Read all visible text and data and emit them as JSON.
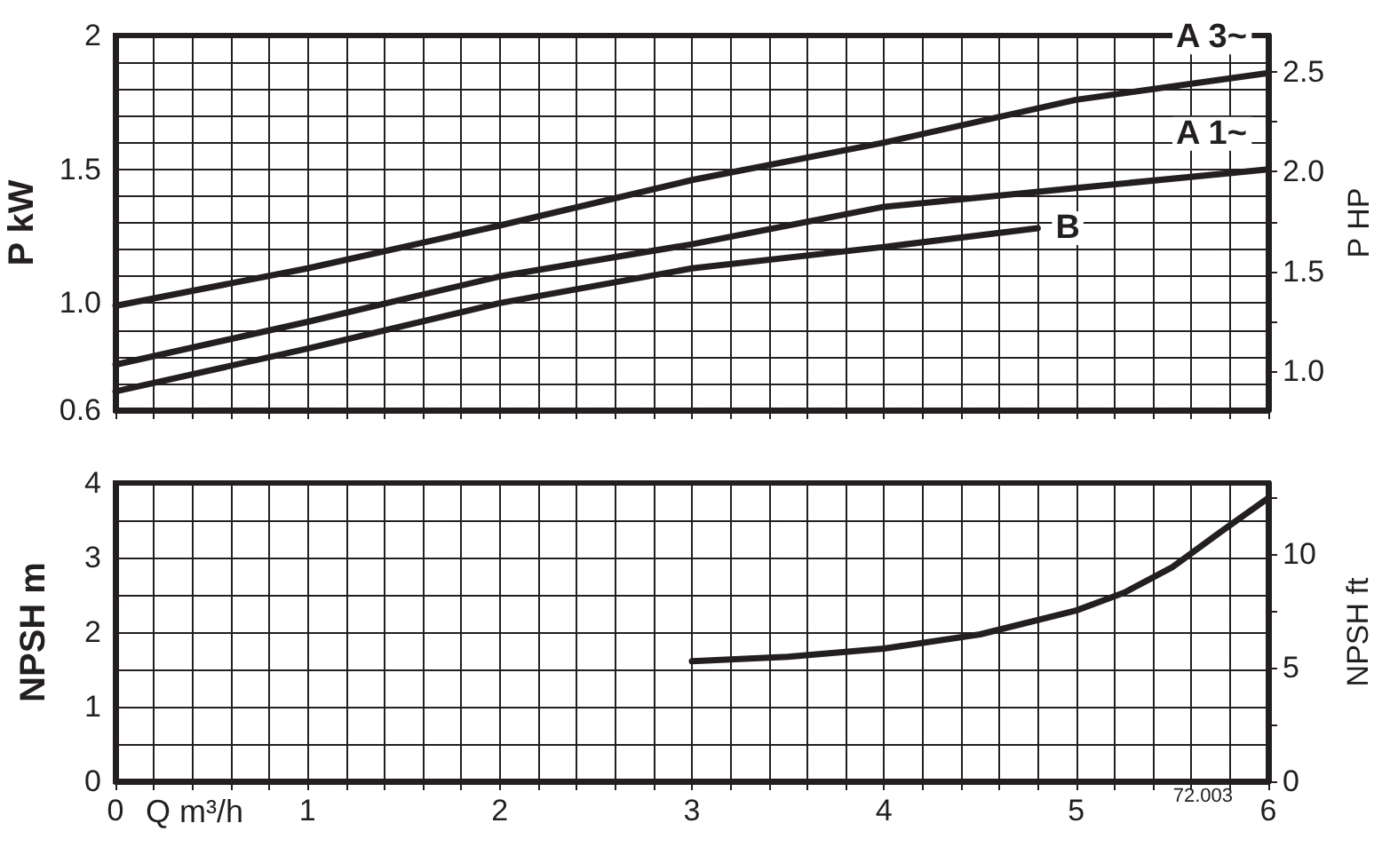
{
  "chart_data": [
    {
      "type": "line",
      "ylabel": "P kW",
      "y2label": "P HP",
      "x": [
        0,
        1,
        2,
        3,
        4,
        5,
        6
      ],
      "series": [
        {
          "name": "A 3~",
          "color": "#231f20",
          "values": [
            0.99,
            1.13,
            1.29,
            1.46,
            1.6,
            1.76,
            1.86
          ]
        },
        {
          "name": "A 1~",
          "color": "#231f20",
          "values": [
            0.77,
            0.93,
            1.1,
            1.22,
            1.36,
            1.43,
            1.5
          ]
        },
        {
          "name": "B",
          "color": "#231f20",
          "x": [
            0,
            1,
            2,
            3,
            4,
            4.8
          ],
          "values": [
            0.67,
            0.83,
            1.0,
            1.13,
            1.21,
            1.28
          ]
        }
      ],
      "xlim": [
        0,
        6
      ],
      "xticks": [
        0,
        {
          "value": 0.2,
          "label": null
        },
        {
          "value": 0.4,
          "label": null
        },
        {
          "value": 0.6,
          "label": null
        },
        {
          "value": 0.8,
          "label": null
        },
        1,
        {
          "value": 1.2,
          "label": null
        },
        {
          "value": 1.4,
          "label": null
        },
        {
          "value": 1.6,
          "label": null
        },
        {
          "value": 1.8,
          "label": null
        },
        2,
        {
          "value": 2.2,
          "label": null
        },
        {
          "value": 2.4,
          "label": null
        },
        {
          "value": 2.6,
          "label": null
        },
        {
          "value": 2.8,
          "label": null
        },
        3,
        {
          "value": 3.2,
          "label": null
        },
        {
          "value": 3.4,
          "label": null
        },
        {
          "value": 3.6,
          "label": null
        },
        {
          "value": 3.8,
          "label": null
        },
        4,
        {
          "value": 4.2,
          "label": null
        },
        {
          "value": 4.4,
          "label": null
        },
        {
          "value": 4.6,
          "label": null
        },
        {
          "value": 4.8,
          "label": null
        },
        5,
        {
          "value": 5.2,
          "label": null
        },
        {
          "value": 5.4,
          "label": null
        },
        {
          "value": 5.6,
          "label": null
        },
        {
          "value": 5.8,
          "label": null
        },
        6
      ],
      "ylim": [
        0.6,
        2
      ],
      "yticks": [
        0.6,
        {
          "value": 0.7,
          "label": null
        },
        {
          "value": 0.8,
          "label": null
        },
        {
          "value": 0.9,
          "label": null
        },
        {
          "value": 1,
          "label": "1.0"
        },
        {
          "value": 1.1,
          "label": null
        },
        {
          "value": 1.2,
          "label": null
        },
        {
          "value": 1.3,
          "label": null
        },
        {
          "value": 1.4,
          "label": null
        },
        1.5,
        {
          "value": 1.6,
          "label": null
        },
        {
          "value": 1.7,
          "label": null
        },
        {
          "value": 1.8,
          "label": null
        },
        {
          "value": 1.9,
          "label": null
        },
        2
      ],
      "y2lim": [
        0.805,
        2.682
      ],
      "y2ticks": [
        {
          "value": 1,
          "label": "1.0"
        },
        {
          "value": 1.25,
          "label": null
        },
        1.5,
        {
          "value": 1.75,
          "label": null
        },
        {
          "value": 2,
          "label": "2.0"
        },
        {
          "value": 2.25,
          "label": null
        },
        2.5
      ],
      "tick_labels": "y",
      "grid": true,
      "legend": false,
      "marker": "none",
      "line_style": "solid"
    },
    {
      "type": "line",
      "ylabel": "NPSH m",
      "y2label": "NPSH ft",
      "xlabel": "Q m³/h",
      "annotations": [
        "72.003"
      ],
      "x": [
        3,
        3.5,
        4,
        4.5,
        5,
        5.25,
        5.5,
        5.75,
        6
      ],
      "series": [
        {
          "color": "#231f20",
          "values": [
            1.61,
            1.67,
            1.78,
            1.97,
            2.29,
            2.53,
            2.87,
            3.34,
            3.8
          ]
        }
      ],
      "xlim": [
        0,
        6
      ],
      "xticks": [
        0,
        {
          "value": 0.2,
          "label": null
        },
        {
          "value": 0.4,
          "label": null
        },
        {
          "value": 0.6,
          "label": null
        },
        {
          "value": 0.8,
          "label": null
        },
        1,
        {
          "value": 1.2,
          "label": null
        },
        {
          "value": 1.4,
          "label": null
        },
        {
          "value": 1.6,
          "label": null
        },
        {
          "value": 1.8,
          "label": null
        },
        2,
        {
          "value": 2.2,
          "label": null
        },
        {
          "value": 2.4,
          "label": null
        },
        {
          "value": 2.6,
          "label": null
        },
        {
          "value": 2.8,
          "label": null
        },
        3,
        {
          "value": 3.2,
          "label": null
        },
        {
          "value": 3.4,
          "label": null
        },
        {
          "value": 3.6,
          "label": null
        },
        {
          "value": 3.8,
          "label": null
        },
        4,
        {
          "value": 4.2,
          "label": null
        },
        {
          "value": 4.4,
          "label": null
        },
        {
          "value": 4.6,
          "label": null
        },
        {
          "value": 4.8,
          "label": null
        },
        5,
        {
          "value": 5.2,
          "label": null
        },
        {
          "value": 5.4,
          "label": null
        },
        {
          "value": 5.6,
          "label": null
        },
        {
          "value": 5.8,
          "label": null
        },
        6
      ],
      "ylim": [
        0,
        4
      ],
      "yticks": [
        0,
        {
          "value": 0.5,
          "label": null
        },
        1,
        {
          "value": 1.5,
          "label": null
        },
        2,
        {
          "value": 2.5,
          "label": null
        },
        3,
        {
          "value": 3.5,
          "label": null
        },
        4
      ],
      "y2lim": [
        0,
        13.12
      ],
      "y2ticks": [
        0,
        {
          "value": 2.5,
          "label": null
        },
        5,
        {
          "value": 7.5,
          "label": null
        },
        10,
        {
          "value": 12.5,
          "label": null
        }
      ],
      "grid": true,
      "legend": false,
      "marker": "none",
      "line_style": "solid"
    }
  ]
}
